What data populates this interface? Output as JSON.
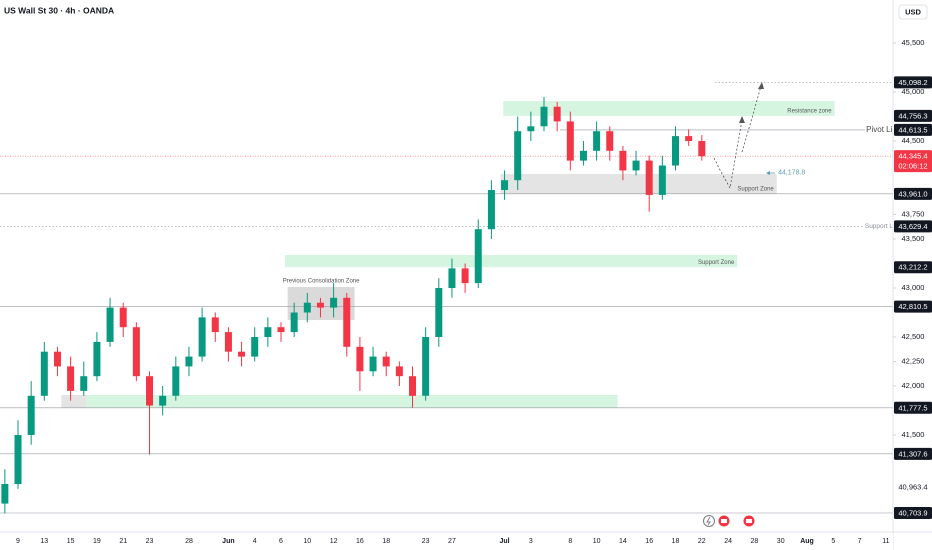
{
  "header": {
    "title": "US Wall St 30 · 4h · OANDA",
    "currency": "USD"
  },
  "chart_data": {
    "type": "candlestick",
    "x": [
      -1,
      0,
      1,
      2,
      3,
      4,
      5,
      6,
      7,
      8,
      9,
      10,
      11,
      12,
      13,
      14,
      15,
      16,
      17,
      18,
      19,
      20,
      21,
      22,
      23,
      24,
      25,
      26,
      27,
      28,
      29,
      30,
      31,
      32,
      33,
      34,
      35,
      36,
      37,
      38,
      39,
      40,
      41,
      42,
      43,
      44,
      45,
      46,
      47,
      48,
      49,
      50,
      51,
      52
    ],
    "open": [
      40800,
      41000,
      41500,
      41900,
      42350,
      42200,
      41950,
      42100,
      42450,
      42800,
      42600,
      42100,
      41800,
      41900,
      42200,
      42300,
      42700,
      42550,
      42350,
      42300,
      42500,
      42600,
      42550,
      42750,
      42850,
      42800,
      42900,
      42400,
      42150,
      42300,
      42200,
      42100,
      41900,
      42500,
      43000,
      43200,
      43050,
      43600,
      44000,
      44100,
      44600,
      44650,
      44850,
      44700,
      44300,
      44400,
      44600,
      44400,
      44200,
      44300,
      43950,
      44250,
      44550,
      44500
    ],
    "high": [
      41150,
      41650,
      42050,
      42450,
      42400,
      42300,
      42250,
      42550,
      42900,
      42850,
      42650,
      42150,
      42000,
      42300,
      42400,
      42800,
      42750,
      42600,
      42450,
      42600,
      42700,
      42650,
      42850,
      42950,
      42900,
      43050,
      42950,
      42500,
      42400,
      42350,
      42250,
      42200,
      42600,
      43100,
      43300,
      43250,
      43700,
      44100,
      44200,
      44750,
      44800,
      44950,
      44900,
      44800,
      44500,
      44700,
      44650,
      44450,
      44400,
      44350,
      44350,
      44650,
      44620,
      44560
    ],
    "low": [
      40700,
      40950,
      41400,
      41850,
      42100,
      41850,
      41900,
      42050,
      42400,
      42500,
      42050,
      41300,
      41700,
      41850,
      42100,
      42250,
      42450,
      42250,
      42200,
      42250,
      42400,
      42450,
      42500,
      42650,
      42700,
      42700,
      42300,
      41950,
      42100,
      42100,
      42000,
      41780,
      41850,
      42400,
      42900,
      42950,
      43000,
      43500,
      43900,
      44000,
      44500,
      44600,
      44600,
      44200,
      44250,
      44300,
      44300,
      44100,
      44150,
      43780,
      43900,
      44200,
      44450,
      44300
    ],
    "close": [
      41000,
      41500,
      41900,
      42350,
      42200,
      41950,
      42100,
      42450,
      42800,
      42600,
      42100,
      41800,
      41900,
      42200,
      42300,
      42700,
      42550,
      42350,
      42300,
      42500,
      42600,
      42550,
      42750,
      42850,
      42800,
      42900,
      42400,
      42150,
      42300,
      42200,
      42100,
      41900,
      42500,
      43000,
      43200,
      43050,
      43600,
      44000,
      44100,
      44600,
      44650,
      44850,
      44700,
      44300,
      44400,
      44600,
      44400,
      44200,
      44300,
      43950,
      44250,
      44550,
      44500,
      44345.4
    ],
    "colors": {
      "up": "#089981",
      "down": "#f23645"
    },
    "xlim": [
      -1.37,
      66.54
    ],
    "ylim": [
      40510,
      45939
    ],
    "xticks": [
      {
        "value": 0,
        "label": "9"
      },
      {
        "value": 2,
        "label": "13"
      },
      {
        "value": 4,
        "label": "15"
      },
      {
        "value": 6,
        "label": "19"
      },
      {
        "value": 8,
        "label": "21"
      },
      {
        "value": 10,
        "label": "23"
      },
      {
        "value": 13,
        "label": "28"
      },
      {
        "value": 16,
        "label": "Jun"
      },
      {
        "value": 18,
        "label": "4"
      },
      {
        "value": 20,
        "label": "6"
      },
      {
        "value": 22,
        "label": "10"
      },
      {
        "value": 24,
        "label": "12"
      },
      {
        "value": 26,
        "label": "16"
      },
      {
        "value": 28,
        "label": "18"
      },
      {
        "value": 31,
        "label": "23"
      },
      {
        "value": 33,
        "label": "27"
      },
      {
        "value": 37,
        "label": "Jul"
      },
      {
        "value": 39,
        "label": "3"
      },
      {
        "value": 42,
        "label": "8"
      },
      {
        "value": 44,
        "label": "10"
      },
      {
        "value": 46,
        "label": "14"
      },
      {
        "value": 48,
        "label": "16"
      },
      {
        "value": 50,
        "label": "18"
      },
      {
        "value": 52,
        "label": "22"
      },
      {
        "value": 54,
        "label": "24"
      },
      {
        "value": 56,
        "label": "28"
      },
      {
        "value": 58,
        "label": "30"
      },
      {
        "value": 60,
        "label": "Aug"
      },
      {
        "value": 62,
        "label": "5"
      },
      {
        "value": 64,
        "label": "7"
      },
      {
        "value": 66,
        "label": "11"
      }
    ],
    "yticks": [
      {
        "value": 45500,
        "label": "45,500"
      },
      {
        "value": 45000,
        "label": "45,000"
      },
      {
        "value": 44500,
        "label": "44,500"
      },
      {
        "value": 43750,
        "label": "43,750"
      },
      {
        "value": 43500,
        "label": "43,500"
      },
      {
        "value": 43000,
        "label": "43,000"
      },
      {
        "value": 42500,
        "label": "42,500"
      },
      {
        "value": 42250,
        "label": "42,250"
      },
      {
        "value": 42000,
        "label": "42,000"
      },
      {
        "value": 41500,
        "label": "41,500"
      }
    ],
    "current_price": {
      "value": 44345.4,
      "label": "44,345.4",
      "countdown": "02:06:12",
      "color": "#f23645"
    },
    "price_labels": [
      {
        "value": 45098.2,
        "label": "45,098.2",
        "line": "dotted",
        "start": 53
      },
      {
        "value": 44756.3,
        "label": "44,756.3",
        "line": "none"
      },
      {
        "value": 44613.5,
        "label": "44,613.5",
        "line": "solid",
        "start": 41.2
      },
      {
        "value": 43961.0,
        "label": "43,961.0",
        "line": "solid"
      },
      {
        "value": 43629.4,
        "label": "43,629.4",
        "line": "dotted"
      },
      {
        "value": 43212.2,
        "label": "43,212.2",
        "line": "none"
      },
      {
        "value": 42810.5,
        "label": "42,810.5",
        "line": "solid"
      },
      {
        "value": 41777.5,
        "label": "41,777.5",
        "line": "solid"
      },
      {
        "value": 41307.6,
        "label": "41,307.6",
        "line": "solid"
      },
      {
        "value": 40963.4,
        "label": "40,963.4",
        "line": "none",
        "style": "plain"
      },
      {
        "value": 40703.9,
        "label": "40,703.9",
        "line": "solid"
      }
    ],
    "zones": [
      {
        "label": "Resistance zone",
        "low": 44756.3,
        "high": 44908,
        "start": 36.9,
        "end": 62.1,
        "color": "#d6f5e0"
      },
      {
        "label": "Support Zone",
        "low": 43961.0,
        "high": 44163,
        "start": 36.7,
        "end": 57.7,
        "color": "#e4e4e4"
      },
      {
        "label": "Support Zone",
        "low": 43212.2,
        "high": 43337,
        "start": 20.3,
        "end": 54.7,
        "color": "#d6f5e0"
      },
      {
        "label": "Previous Consolidation Zone",
        "low": 42673,
        "high": 43010,
        "start": 20.5,
        "end": 25.6,
        "color": "#dadada"
      },
      {
        "low": 41777.5,
        "high": 41908,
        "start": 5.2,
        "end": 45.6,
        "color": "#d6f5e0"
      },
      {
        "low": 41777.5,
        "high": 41908,
        "start": 3.3,
        "end": 5.2,
        "color": "#e4e4e4"
      }
    ],
    "annotations": [
      {
        "text": "Pivot Line",
        "value": 44613.5,
        "x": 64.5,
        "color": "#4a4a4a",
        "size": 8
      },
      {
        "text": "Support Line",
        "value": 43629.4,
        "x": 64.4,
        "color": "#8a8e97",
        "size": 6.5
      },
      {
        "text": "44,178.8",
        "value": 44178.8,
        "x": 57.8,
        "color": "#5f9db5",
        "size": 7
      }
    ]
  }
}
